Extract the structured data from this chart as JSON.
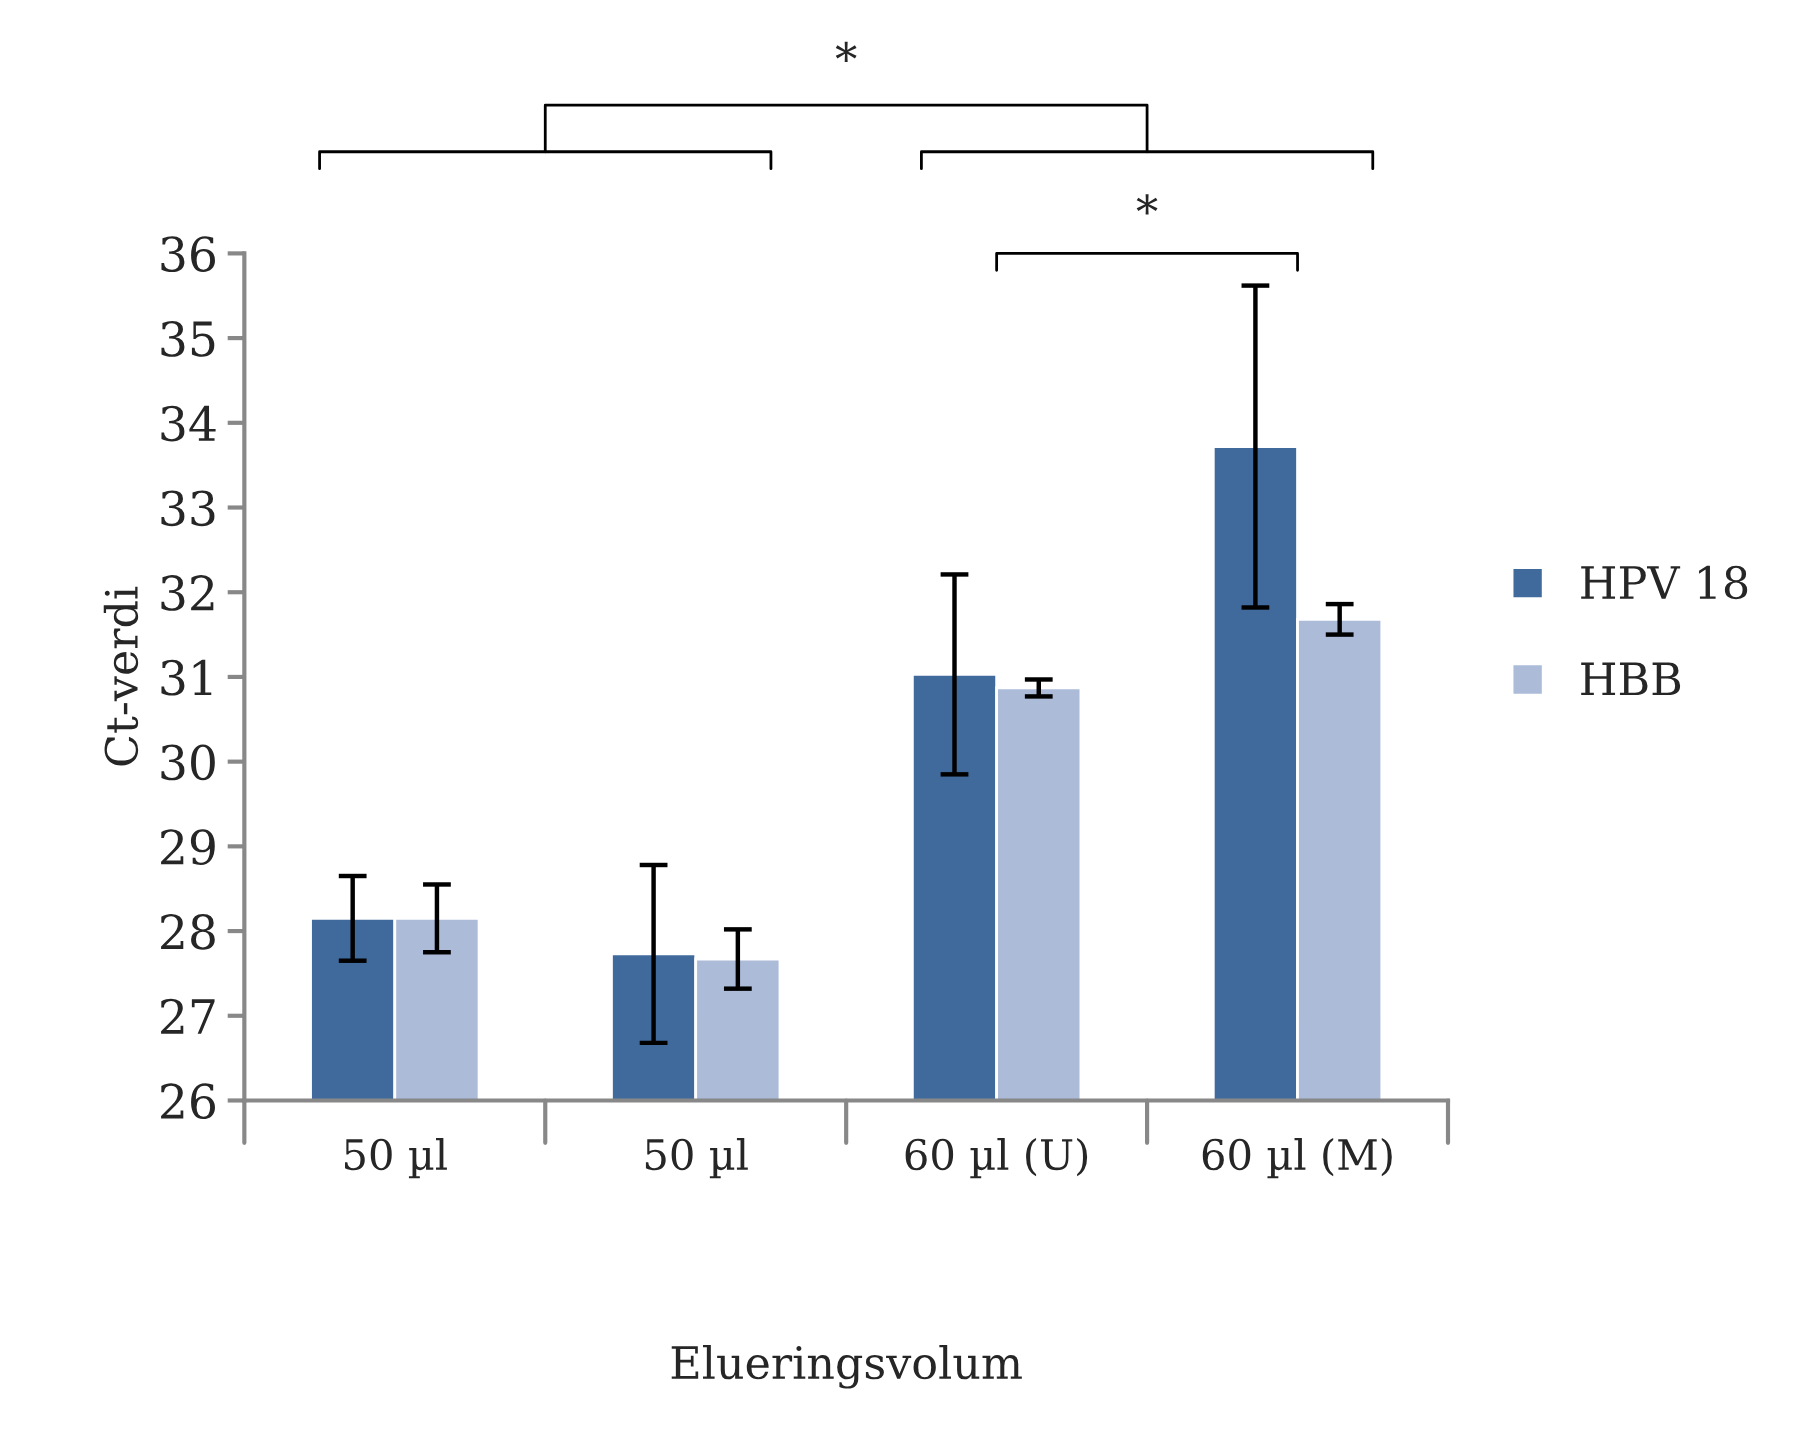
{
  "chart_data": {
    "type": "bar",
    "xlabel": "Elueringsvolum",
    "ylabel": "Ct-verdi",
    "categories": [
      "50 µl",
      "50 µl",
      "60 µl (U)",
      "60 µl (M)"
    ],
    "series": [
      {
        "name": "HPV 18",
        "color": "#416a9c",
        "values": [
          28.15,
          27.73,
          31.03,
          33.72
        ],
        "errors": [
          0.5,
          1.05,
          1.18,
          1.9
        ]
      },
      {
        "name": "HBB",
        "color": "#abbbd8",
        "values": [
          28.15,
          27.67,
          30.87,
          31.68
        ],
        "errors": [
          0.4,
          0.35,
          0.1,
          0.18
        ]
      }
    ],
    "ylim": [
      26,
      36
    ],
    "yticks": [
      26,
      27,
      28,
      29,
      30,
      31,
      32,
      33,
      34,
      35,
      36
    ],
    "annotations": [
      "*",
      "*"
    ],
    "legend": "right",
    "grid": false
  }
}
